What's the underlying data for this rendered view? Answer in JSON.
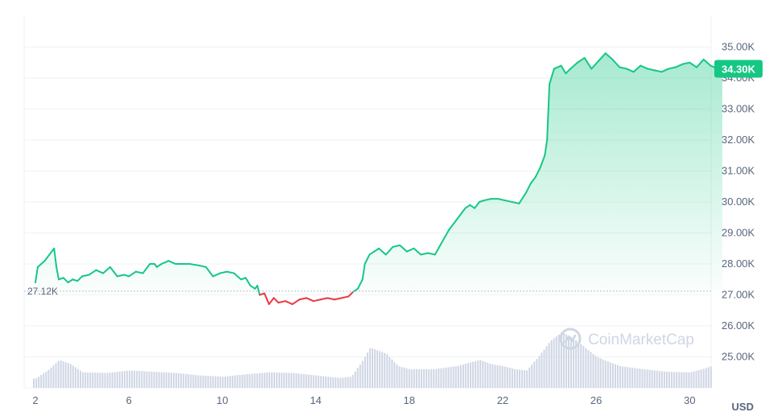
{
  "chart_data": {
    "type": "area",
    "currency_label": "USD",
    "watermark": "CoinMarketCap",
    "baseline": {
      "value": 27120,
      "label": "27.12K"
    },
    "current": {
      "value": 34300,
      "label": "34.30K"
    },
    "ylim": [
      24000,
      36000
    ],
    "y_ticks": [
      {
        "value": 25000,
        "label": "25.00K"
      },
      {
        "value": 26000,
        "label": "26.00K"
      },
      {
        "value": 27000,
        "label": "27.00K"
      },
      {
        "value": 28000,
        "label": "28.00K"
      },
      {
        "value": 29000,
        "label": "29.00K"
      },
      {
        "value": 30000,
        "label": "30.00K"
      },
      {
        "value": 31000,
        "label": "31.00K"
      },
      {
        "value": 32000,
        "label": "32.00K"
      },
      {
        "value": 33000,
        "label": "33.00K"
      },
      {
        "value": 34000,
        "label": "34.00K"
      },
      {
        "value": 35000,
        "label": "35.00K"
      }
    ],
    "xlim": [
      2,
      31.4
    ],
    "x_ticks": [
      {
        "value": 2,
        "label": "2"
      },
      {
        "value": 6,
        "label": "6"
      },
      {
        "value": 10,
        "label": "10"
      },
      {
        "value": 14,
        "label": "14"
      },
      {
        "value": 18,
        "label": "18"
      },
      {
        "value": 22,
        "label": "22"
      },
      {
        "value": 26,
        "label": "26"
      },
      {
        "value": 30,
        "label": "30"
      }
    ],
    "colors": {
      "up": "#16c784",
      "down": "#ea3943",
      "volume": "#cfd6e4",
      "grid": "#eff2f5",
      "text": "#58667e"
    },
    "price": {
      "x": [
        2.0,
        2.1,
        2.4,
        2.6,
        2.8,
        2.9,
        3.0,
        3.2,
        3.4,
        3.6,
        3.8,
        4.0,
        4.3,
        4.6,
        4.9,
        5.2,
        5.5,
        5.8,
        6.0,
        6.3,
        6.6,
        6.9,
        7.1,
        7.2,
        7.4,
        7.7,
        8.0,
        8.3,
        8.6,
        9.0,
        9.3,
        9.6,
        9.9,
        10.2,
        10.5,
        10.8,
        11.0,
        11.2,
        11.4,
        11.5,
        11.6,
        11.8,
        12.0,
        12.2,
        12.4,
        12.7,
        13.0,
        13.3,
        13.6,
        13.9,
        14.2,
        14.5,
        14.8,
        15.1,
        15.4,
        15.6,
        15.8,
        16.0,
        16.1,
        16.3,
        16.5,
        16.7,
        17.0,
        17.3,
        17.6,
        17.9,
        18.2,
        18.5,
        18.8,
        19.1,
        19.4,
        19.7,
        20.0,
        20.2,
        20.4,
        20.6,
        20.8,
        21.0,
        21.2,
        21.5,
        21.8,
        22.1,
        22.4,
        22.7,
        23.0,
        23.2,
        23.4,
        23.6,
        23.8,
        23.9,
        24.0,
        24.2,
        24.5,
        24.7,
        24.9,
        25.2,
        25.5,
        25.8,
        26.1,
        26.4,
        26.7,
        27.0,
        27.3,
        27.6,
        27.9,
        28.2,
        28.5,
        28.8,
        29.1,
        29.4,
        29.7,
        30.0,
        30.3,
        30.6,
        30.9,
        31.2,
        31.4
      ],
      "y": [
        27400,
        27900,
        28100,
        28300,
        28500,
        27900,
        27500,
        27550,
        27400,
        27500,
        27450,
        27600,
        27650,
        27800,
        27700,
        27900,
        27600,
        27650,
        27600,
        27750,
        27700,
        28000,
        28000,
        27900,
        28000,
        28100,
        28000,
        28000,
        28000,
        27950,
        27900,
        27600,
        27700,
        27750,
        27700,
        27500,
        27550,
        27300,
        27200,
        27300,
        27000,
        27050,
        26700,
        26900,
        26750,
        26800,
        26700,
        26850,
        26900,
        26800,
        26850,
        26900,
        26850,
        26900,
        26950,
        27100,
        27200,
        27500,
        28000,
        28300,
        28400,
        28500,
        28300,
        28550,
        28600,
        28400,
        28500,
        28300,
        28350,
        28300,
        28700,
        29100,
        29400,
        29600,
        29800,
        29900,
        29800,
        30000,
        30050,
        30100,
        30100,
        30050,
        30000,
        29950,
        30300,
        30600,
        30800,
        31100,
        31500,
        32000,
        33800,
        34300,
        34400,
        34150,
        34300,
        34500,
        34650,
        34300,
        34550,
        34800,
        34600,
        34350,
        34300,
        34200,
        34400,
        34300,
        34250,
        34200,
        34300,
        34350,
        34450,
        34500,
        34350,
        34600,
        34400,
        34300,
        34300
      ]
    },
    "volume": {
      "x": [
        2,
        2.5,
        3,
        3.5,
        4,
        5,
        6,
        7,
        8,
        9,
        10,
        11,
        12,
        13,
        14,
        15,
        15.5,
        16,
        16.3,
        17,
        17.5,
        18,
        19,
        20,
        20.5,
        21,
        21.5,
        22,
        22.5,
        23,
        23.5,
        24,
        24.5,
        25,
        25.5,
        26,
        26.5,
        27,
        28,
        29,
        30,
        30.5,
        31,
        31.4
      ],
      "values": [
        0.15,
        0.28,
        0.45,
        0.38,
        0.25,
        0.24,
        0.28,
        0.26,
        0.24,
        0.2,
        0.18,
        0.22,
        0.25,
        0.24,
        0.2,
        0.16,
        0.18,
        0.45,
        0.65,
        0.55,
        0.35,
        0.3,
        0.3,
        0.35,
        0.4,
        0.45,
        0.38,
        0.35,
        0.3,
        0.28,
        0.5,
        0.75,
        0.9,
        0.8,
        0.65,
        0.5,
        0.42,
        0.35,
        0.3,
        0.26,
        0.25,
        0.3,
        0.36,
        0.34
      ]
    }
  }
}
